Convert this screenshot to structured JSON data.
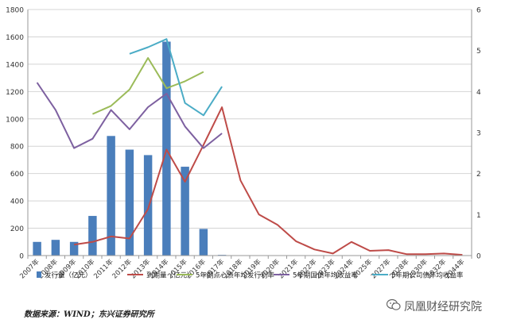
{
  "chart_data": {
    "type": "bar",
    "categories": [
      "2007年",
      "2008年",
      "2009年",
      "2010年",
      "2011年",
      "2012年",
      "2013年",
      "2014年",
      "2015年",
      "2016年",
      "2017年",
      "2018年",
      "2019年",
      "2020年",
      "2021年",
      "2022年",
      "2023年",
      "2024年",
      "2025年",
      "2027年",
      "2028年",
      "2030年",
      "2032年",
      "2044年"
    ],
    "y_left": {
      "ticks": [
        0,
        200,
        400,
        600,
        800,
        1000,
        1200,
        1400,
        1600,
        1800
      ],
      "ylim": [
        0,
        1800
      ]
    },
    "y_right": {
      "ticks": [
        0,
        1,
        2,
        3,
        4,
        5,
        6
      ],
      "ylim": [
        0,
        6
      ]
    },
    "grid": "horizontal",
    "legend_position": "bottom",
    "series": [
      {
        "name": "发行量（亿元）",
        "kind": "bar",
        "axis": "left",
        "color": "#4a7ebb",
        "values": [
          100,
          115,
          100,
          290,
          875,
          775,
          735,
          1565,
          650,
          195,
          5,
          null,
          null,
          null,
          null,
          null,
          null,
          null,
          null,
          null,
          null,
          null,
          null,
          null
        ]
      },
      {
        "name": "到期量（亿元）",
        "kind": "line",
        "axis": "left",
        "color": "#be4b48",
        "values": [
          null,
          null,
          80,
          100,
          140,
          125,
          340,
          775,
          540,
          810,
          1085,
          550,
          300,
          225,
          105,
          45,
          15,
          100,
          35,
          40,
          10,
          10,
          15,
          5
        ]
      },
      {
        "name": "5年期点心债年均发行利率",
        "kind": "line",
        "axis": "right",
        "color": "#9bbb59",
        "values": [
          null,
          null,
          null,
          3.45,
          3.65,
          4.05,
          4.82,
          4.08,
          4.25,
          4.48,
          null,
          null,
          null,
          null,
          null,
          null,
          null,
          null,
          null,
          null,
          null,
          null,
          null,
          null
        ]
      },
      {
        "name": "5年期国债年均收益率",
        "kind": "line",
        "axis": "right",
        "color": "#7d60a0",
        "values": [
          4.22,
          3.55,
          2.62,
          2.85,
          3.55,
          3.08,
          3.62,
          3.95,
          3.15,
          2.62,
          2.98,
          null,
          null,
          null,
          null,
          null,
          null,
          null,
          null,
          null,
          null,
          null,
          null,
          null
        ]
      },
      {
        "name": "5年期公司债年均收益率",
        "kind": "line",
        "axis": "right",
        "color": "#4bacc6",
        "values": [
          null,
          null,
          null,
          null,
          null,
          4.92,
          5.08,
          5.28,
          3.72,
          3.42,
          4.12,
          null,
          null,
          null,
          null,
          null,
          null,
          null,
          null,
          null,
          null,
          null,
          null,
          null
        ]
      }
    ]
  },
  "footer": {
    "source": "数据来源：WIND；东兴证券研究所"
  },
  "watermark": {
    "text": "凤凰财经研究院",
    "icon": "wechat-icon"
  }
}
